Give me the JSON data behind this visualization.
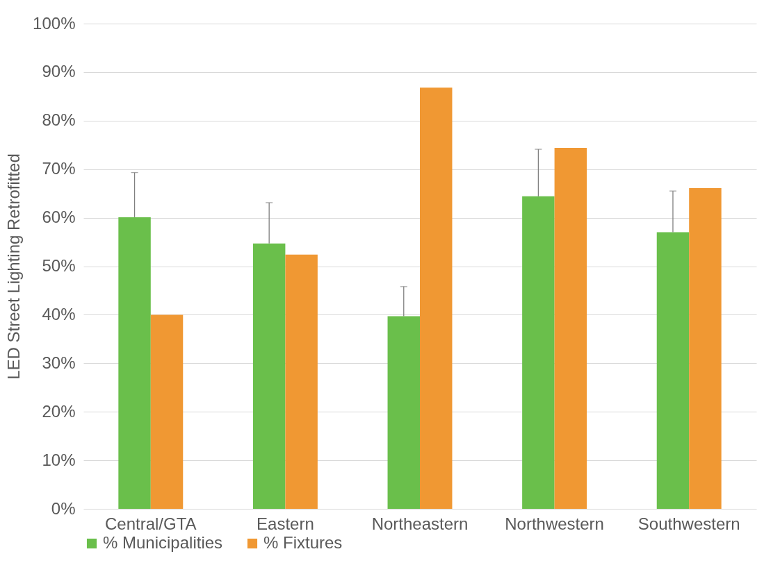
{
  "chart_data": {
    "type": "bar",
    "ylabel": "LED Street Lighting Retrofitted",
    "categories": [
      "Central/GTA",
      "Eastern",
      "Northeastern",
      "Northwestern",
      "Southwestern"
    ],
    "series": [
      {
        "name": "% Municipalities",
        "color": "#6abf4b",
        "values": [
          60.1,
          54.7,
          39.7,
          64.4,
          57.0
        ],
        "errors": [
          [
            60.1,
            69.3
          ],
          [
            54.7,
            63.1
          ],
          [
            39.7,
            45.8
          ],
          [
            64.4,
            74.1
          ],
          [
            57.0,
            65.5
          ]
        ]
      },
      {
        "name": "% Fixtures",
        "color": "#f09833",
        "values": [
          40.0,
          52.4,
          86.8,
          74.4,
          66.1
        ]
      }
    ],
    "ylim": [
      0,
      100
    ],
    "yticks": [
      {
        "value": 0,
        "label": "0%"
      },
      {
        "value": 10,
        "label": "10%"
      },
      {
        "value": 20,
        "label": "20%"
      },
      {
        "value": 30,
        "label": "30%"
      },
      {
        "value": 40,
        "label": "40%"
      },
      {
        "value": 50,
        "label": "50%"
      },
      {
        "value": 60,
        "label": "60%"
      },
      {
        "value": 70,
        "label": "70%"
      },
      {
        "value": 80,
        "label": "80%"
      },
      {
        "value": 90,
        "label": "90%"
      },
      {
        "value": 100,
        "label": "100%"
      }
    ],
    "grid": "y",
    "legend": "bottom"
  }
}
